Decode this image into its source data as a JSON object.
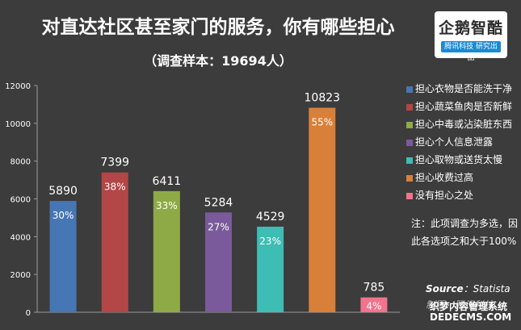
{
  "title": "对直达社区甚至家门的服务，你有哪些担心",
  "subtitle": "（调查样本：19694人）",
  "logo": {
    "text": "企鹅智酷",
    "sub": "腾讯科技  研究出品"
  },
  "note": "注：此项调查为多选，因此各选项之和大于100%",
  "source": {
    "label": "Source",
    "value": "：Statista"
  },
  "credit": "制图：腾讯科技",
  "watermark": "织梦内容管理系统 DEDECMS.COM",
  "chart_data": {
    "type": "bar",
    "title": "对直达社区甚至家门的服务，你有哪些担心",
    "subtitle": "（调查样本：19694人）",
    "ylim": [
      0,
      12000
    ],
    "yticks": [
      0,
      2000,
      4000,
      6000,
      8000,
      10000,
      12000
    ],
    "grid": false,
    "legend_position": "right",
    "categories": [
      "担心衣物是否能洗干净",
      "担心蔬菜鱼肉是否新鲜",
      "担心中毒或沾染脏东西",
      "担心个人信息泄露",
      "担心取物或送货太慢",
      "担心收费过高",
      "没有担心之处"
    ],
    "values": [
      5890,
      7399,
      6411,
      5284,
      4529,
      10823,
      785
    ],
    "percent_labels": [
      "30%",
      "38%",
      "33%",
      "27%",
      "23%",
      "55%",
      "4%"
    ],
    "colors": [
      "#4676b3",
      "#b34646",
      "#8eaa46",
      "#7a5a9a",
      "#3ebdb4",
      "#d8803a",
      "#f2738c"
    ]
  }
}
